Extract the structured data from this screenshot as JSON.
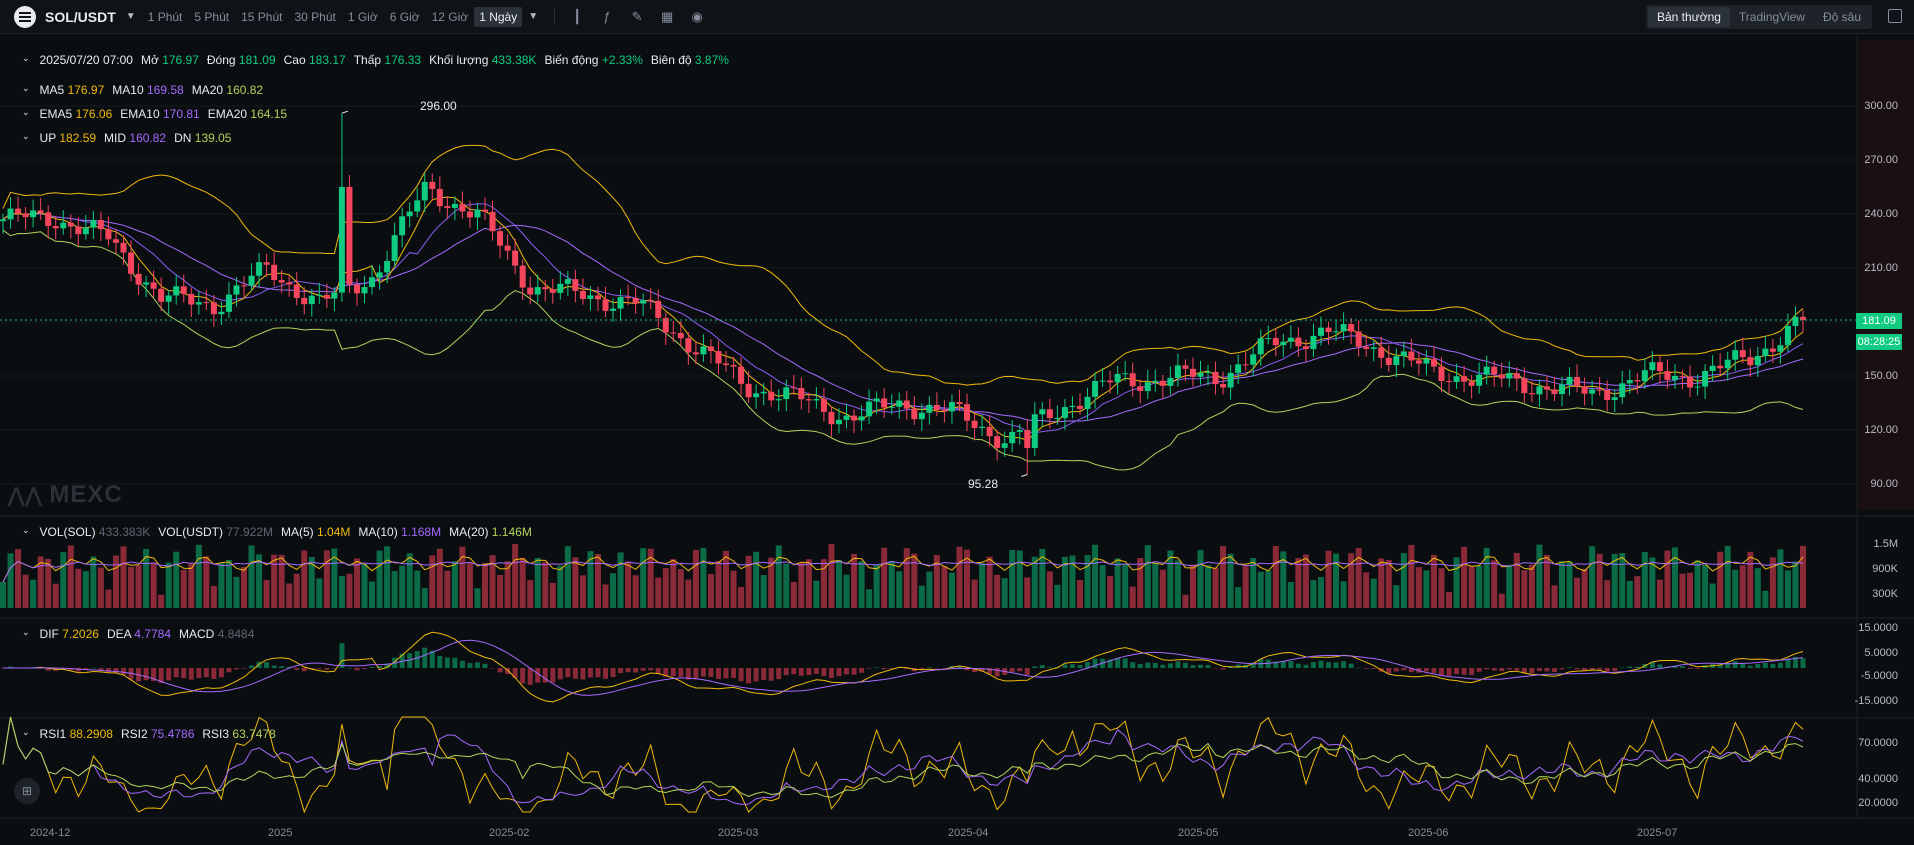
{
  "toolbar": {
    "symbol": "SOL/USDT",
    "intervals": [
      "1 Phút",
      "5 Phút",
      "15 Phút",
      "30 Phút",
      "1 Giờ",
      "6 Giờ",
      "12 Giờ"
    ],
    "active_interval": "1 Ngày",
    "view_tabs": [
      "Bản thường",
      "TradingView",
      "Độ sâu"
    ],
    "active_view": "Bản thường"
  },
  "info": {
    "date": "2025/07/20 07:00",
    "open_label": "Mở",
    "open": "176.97",
    "close_label": "Đóng",
    "close": "181.09",
    "high_label": "Cao",
    "high": "183.17",
    "low_label": "Thấp",
    "low": "176.33",
    "vol_label": "Khối lượng",
    "vol": "433.38K",
    "change_label": "Biến động",
    "change": "+2.33%",
    "amp_label": "Biên độ",
    "amp": "3.87%"
  },
  "ma": {
    "ma5": "MA5",
    "ma5_v": "176.97",
    "ma10": "MA10",
    "ma10_v": "169.58",
    "ma20": "MA20",
    "ma20_v": "160.82"
  },
  "ema": {
    "ema5": "EMA5",
    "ema5_v": "176.06",
    "ema10": "EMA10",
    "ema10_v": "170.81",
    "ema20": "EMA20",
    "ema20_v": "164.15"
  },
  "boll": {
    "up": "UP",
    "up_v": "182.59",
    "mid": "MID",
    "mid_v": "160.82",
    "dn": "DN",
    "dn_v": "139.05"
  },
  "vol": {
    "sol": "VOL(SOL)",
    "sol_v": "433.383K",
    "usdt": "VOL(USDT)",
    "usdt_v": "77.922M",
    "ma5": "MA(5)",
    "ma5_v": "1.04M",
    "ma10": "MA(10)",
    "ma10_v": "1.168M",
    "ma20": "MA(20)",
    "ma20_v": "1.146M"
  },
  "macd": {
    "dif": "DIF",
    "dif_v": "7.2026",
    "dea": "DEA",
    "dea_v": "4.7784",
    "macd": "MACD",
    "macd_v": "4.8484"
  },
  "rsi": {
    "rsi1": "RSI1",
    "rsi1_v": "88.2908",
    "rsi2": "RSI2",
    "rsi2_v": "75.4786",
    "rsi3": "RSI3",
    "rsi3_v": "63.7478"
  },
  "price_tag": {
    "price": "181.09",
    "countdown": "08:28:25"
  },
  "max_label": "296.00",
  "min_label": "95.28",
  "watermark": "MEXC",
  "colors": {
    "up": "#0ecb81",
    "down": "#f6465d",
    "ma5": "#f0b90b",
    "ma10": "#a569ff",
    "ma20": "#b2d35a"
  },
  "chart_data": [
    {
      "type": "candlestick",
      "title": "SOL/USDT",
      "x_ticks": [
        "2024-12",
        "2025",
        "2025-02",
        "2025-03",
        "2025-04",
        "2025-05",
        "2025-06",
        "2025-07"
      ],
      "y_ticks": [
        "300.00",
        "270.00",
        "240.00",
        "210.00",
        "180.00",
        "150.00",
        "120.00",
        "90.00"
      ],
      "ylim": [
        80,
        318
      ],
      "series": [
        {
          "name": "Close",
          "x": [
            "2024-11-24",
            "2024-12-01",
            "2024-12-08",
            "2024-12-15",
            "2024-12-22",
            "2024-12-29",
            "2025-01-05",
            "2025-01-12",
            "2025-01-19",
            "2025-01-26",
            "2025-02-02",
            "2025-02-09",
            "2025-02-16",
            "2025-02-23",
            "2025-03-02",
            "2025-03-09",
            "2025-03-16",
            "2025-03-23",
            "2025-03-30",
            "2025-04-06",
            "2025-04-13",
            "2025-04-20",
            "2025-04-27",
            "2025-05-04",
            "2025-05-11",
            "2025-05-18",
            "2025-05-25",
            "2025-06-01",
            "2025-06-08",
            "2025-06-15",
            "2025-06-22",
            "2025-06-29",
            "2025-07-06",
            "2025-07-13",
            "2025-07-20"
          ],
          "values": [
            237,
            238,
            226,
            193,
            190,
            209,
            190,
            206,
            255,
            238,
            199,
            195,
            190,
            168,
            145,
            137,
            127,
            135,
            129,
            114,
            133,
            147,
            149,
            150,
            168,
            175,
            165,
            152,
            149,
            145,
            140,
            150,
            150,
            160,
            181.09
          ]
        }
      ],
      "annotations": [
        "296.00",
        "95.28",
        "181.09"
      ]
    },
    {
      "type": "bar",
      "title": "VOL(SOL)",
      "y_ticks": [
        "1.5M",
        "900K",
        "300K"
      ]
    },
    {
      "type": "line",
      "title": "MACD",
      "y_ticks": [
        "15.0000",
        "5.0000",
        "-5.0000",
        "-15.0000"
      ]
    },
    {
      "type": "line",
      "title": "RSI",
      "y_ticks": [
        "70.0000",
        "40.0000",
        "20.0000"
      ]
    }
  ]
}
